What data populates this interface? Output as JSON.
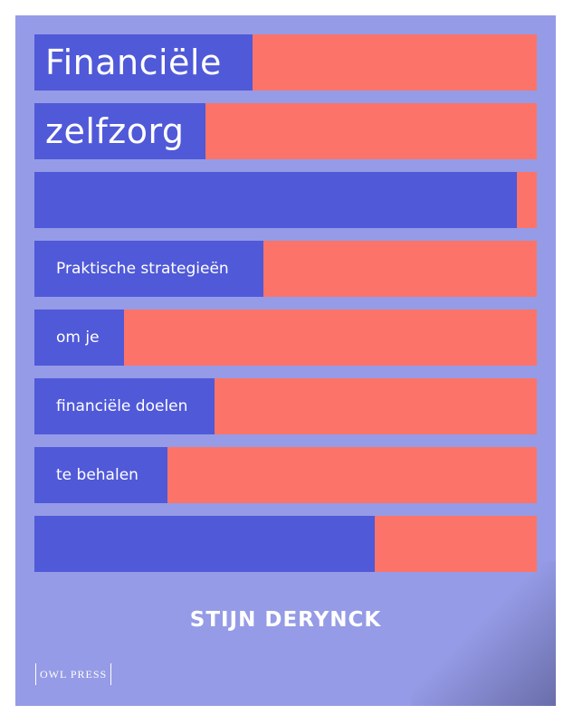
{
  "cover": {
    "background_color": "#959be6",
    "bar_color_blue": "#5059d8",
    "bar_color_red": "#fc7469",
    "title_lines": [
      "Financiële",
      "zelfzorg"
    ],
    "subtitle_lines": [
      "Praktische strategieën",
      "om je",
      "financiële doelen",
      "te behalen"
    ],
    "author": "STIJN DERYNCK",
    "publisher": "OWL PRESS",
    "bar_blue_fraction": [
      0.434,
      0.34,
      0.96,
      0.456,
      0.178,
      0.358,
      0.265,
      0.677
    ]
  }
}
